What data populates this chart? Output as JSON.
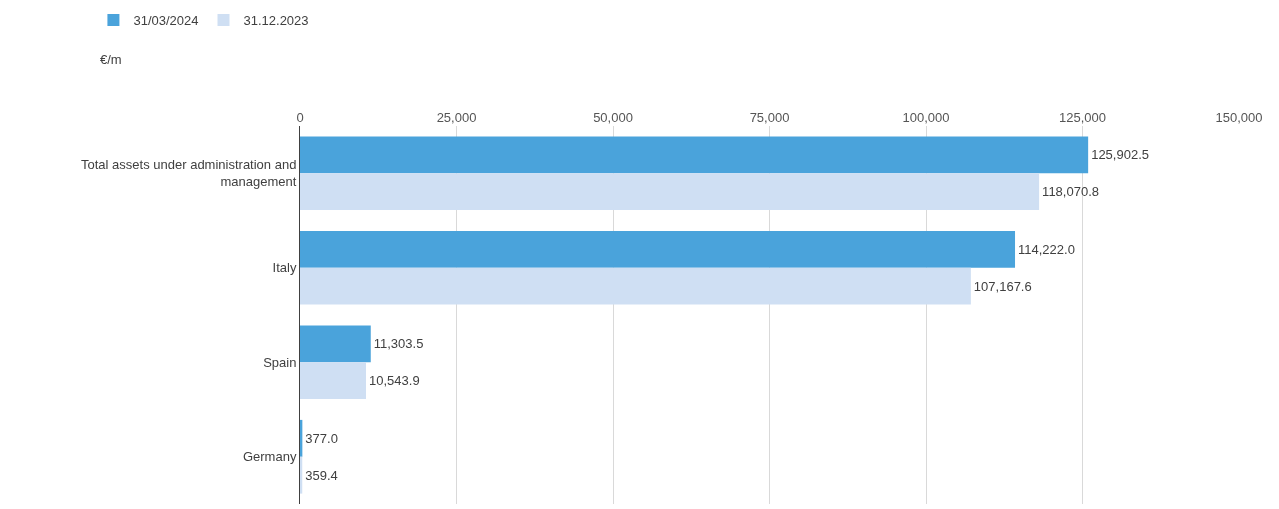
{
  "chart_data": {
    "type": "bar",
    "orientation": "horizontal",
    "categories": [
      "Total assets under administration and management",
      "Italy",
      "Spain",
      "Germany"
    ],
    "series": [
      {
        "name": "31/03/2024",
        "color": "#4aa3db",
        "values": [
          125902.5,
          114222.0,
          11303.5,
          377.0
        ],
        "value_labels": [
          "125,902.5",
          "114,222.0",
          "11,303.5",
          "377.0"
        ]
      },
      {
        "name": "31.12.2023",
        "color": "#cfdff3",
        "values": [
          118070.8,
          107167.6,
          10543.9,
          359.4
        ],
        "value_labels": [
          "118,070.8",
          "107,167.6",
          "10,543.9",
          "359.4"
        ]
      }
    ],
    "xlim": [
      0,
      150000
    ],
    "xticks": [
      {
        "value": 0,
        "label": "0"
      },
      {
        "value": 25000,
        "label": "25,000"
      },
      {
        "value": 50000,
        "label": "50,000"
      },
      {
        "value": 75000,
        "label": "75,000"
      },
      {
        "value": 100000,
        "label": "100,000"
      },
      {
        "value": 125000,
        "label": "125,000"
      },
      {
        "value": 150000,
        "label": "150,000"
      }
    ],
    "annotations": [
      "€/m"
    ],
    "grid": "x",
    "legend": "top left"
  }
}
